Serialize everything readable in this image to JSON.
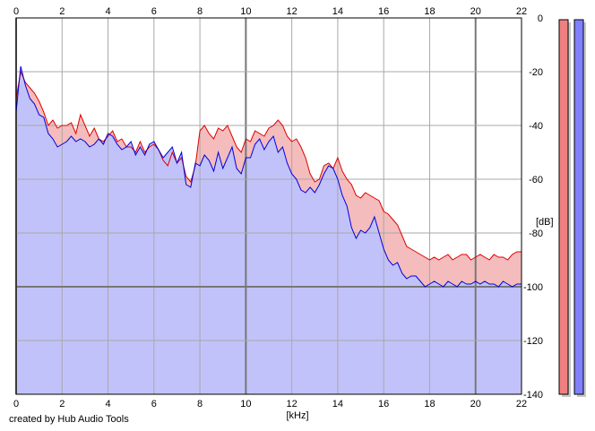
{
  "chart_data": {
    "type": "area",
    "xlabel": "[kHz]",
    "ylabel": "[dB]",
    "xlim": [
      0,
      22
    ],
    "ylim": [
      -140,
      0
    ],
    "x_ticks": [
      0,
      2,
      4,
      6,
      8,
      10,
      12,
      14,
      16,
      18,
      20,
      22
    ],
    "y_ticks": [
      0,
      -20,
      -40,
      -60,
      -80,
      -100,
      -120,
      -140
    ],
    "grid": true,
    "series": [
      {
        "color": "#e00000",
        "fill": "#f4bcbc",
        "x": [
          0,
          0.2,
          0.4,
          0.6,
          0.8,
          1,
          1.2,
          1.4,
          1.6,
          1.8,
          2,
          2.2,
          2.4,
          2.6,
          2.8,
          3,
          3.2,
          3.4,
          3.6,
          3.8,
          4,
          4.2,
          4.4,
          4.6,
          4.8,
          5,
          5.2,
          5.4,
          5.6,
          5.8,
          6,
          6.2,
          6.4,
          6.6,
          6.8,
          7,
          7.2,
          7.4,
          7.6,
          7.8,
          8,
          8.2,
          8.4,
          8.6,
          8.8,
          9,
          9.2,
          9.4,
          9.6,
          9.8,
          10,
          10.2,
          10.4,
          10.6,
          10.8,
          11,
          11.2,
          11.4,
          11.6,
          11.8,
          12,
          12.2,
          12.4,
          12.6,
          12.8,
          13,
          13.2,
          13.4,
          13.6,
          13.8,
          14,
          14.2,
          14.4,
          14.6,
          14.8,
          15,
          15.2,
          15.4,
          15.6,
          15.8,
          16,
          16.2,
          16.4,
          16.6,
          16.8,
          17,
          17.2,
          17.4,
          17.6,
          17.8,
          18,
          18.2,
          18.4,
          18.6,
          18.8,
          19,
          19.2,
          19.4,
          19.6,
          19.8,
          20,
          20.2,
          20.4,
          20.6,
          20.8,
          21,
          21.2,
          21.4,
          21.6,
          21.8,
          22
        ],
        "values": [
          -30,
          -20,
          -24,
          -26,
          -28,
          -31,
          -35,
          -40,
          -38,
          -41,
          -40,
          -40,
          -39,
          -43,
          -36,
          -40,
          -44,
          -41,
          -45,
          -46,
          -44,
          -42,
          -46,
          -45,
          -48,
          -48,
          -50,
          -46,
          -50,
          -48,
          -47,
          -49,
          -53,
          -55,
          -50,
          -54,
          -52,
          -59,
          -61,
          -55,
          -42,
          -40,
          -43,
          -45,
          -41,
          -42,
          -40,
          -44,
          -48,
          -50,
          -45,
          -46,
          -42,
          -43,
          -44,
          -41,
          -40,
          -38,
          -40,
          -44,
          -46,
          -45,
          -48,
          -52,
          -58,
          -61,
          -60,
          -55,
          -54,
          -56,
          -52,
          -57,
          -60,
          -62,
          -66,
          -67,
          -65,
          -66,
          -67,
          -68,
          -72,
          -73,
          -75,
          -77,
          -81,
          -85,
          -86,
          -87,
          -88,
          -89,
          -90,
          -89,
          -90,
          -89,
          -88,
          -90,
          -89,
          -88,
          -88,
          -90,
          -89,
          -88,
          -89,
          -90,
          -88,
          -89,
          -89,
          -90,
          -88,
          -87,
          -87
        ]
      },
      {
        "color": "#0000e0",
        "fill": "#c2c2fa",
        "x": [
          0,
          0.2,
          0.4,
          0.6,
          0.8,
          1,
          1.2,
          1.4,
          1.6,
          1.8,
          2,
          2.2,
          2.4,
          2.6,
          2.8,
          3,
          3.2,
          3.4,
          3.6,
          3.8,
          4,
          4.2,
          4.4,
          4.6,
          4.8,
          5,
          5.2,
          5.4,
          5.6,
          5.8,
          6,
          6.2,
          6.4,
          6.6,
          6.8,
          7,
          7.2,
          7.4,
          7.6,
          7.8,
          8,
          8.2,
          8.4,
          8.6,
          8.8,
          9,
          9.2,
          9.4,
          9.6,
          9.8,
          10,
          10.2,
          10.4,
          10.6,
          10.8,
          11,
          11.2,
          11.4,
          11.6,
          11.8,
          12,
          12.2,
          12.4,
          12.6,
          12.8,
          13,
          13.2,
          13.4,
          13.6,
          13.8,
          14,
          14.2,
          14.4,
          14.6,
          14.8,
          15,
          15.2,
          15.4,
          15.6,
          15.8,
          16,
          16.2,
          16.4,
          16.6,
          16.8,
          17,
          17.2,
          17.4,
          17.6,
          17.8,
          18,
          18.2,
          18.4,
          18.6,
          18.8,
          19,
          19.2,
          19.4,
          19.6,
          19.8,
          20,
          20.2,
          20.4,
          20.6,
          20.8,
          21,
          21.2,
          21.4,
          21.6,
          21.8,
          22
        ],
        "values": [
          -35,
          -18,
          -25,
          -30,
          -32,
          -36,
          -37,
          -43,
          -45,
          -48,
          -47,
          -46,
          -44,
          -46,
          -45,
          -46,
          -48,
          -47,
          -45,
          -47,
          -43,
          -44,
          -47,
          -49,
          -48,
          -46,
          -51,
          -48,
          -51,
          -47,
          -46,
          -49,
          -52,
          -50,
          -48,
          -54,
          -50,
          -62,
          -63,
          -54,
          -55,
          -51,
          -53,
          -57,
          -50,
          -56,
          -52,
          -48,
          -56,
          -58,
          -52,
          -52,
          -47,
          -45,
          -49,
          -46,
          -44,
          -50,
          -48,
          -54,
          -58,
          -60,
          -64,
          -65,
          -63,
          -65,
          -62,
          -58,
          -55,
          -56,
          -60,
          -66,
          -70,
          -78,
          -82,
          -79,
          -80,
          -78,
          -74,
          -80,
          -86,
          -90,
          -92,
          -91,
          -95,
          -97,
          -96,
          -96,
          -98,
          -100,
          -99,
          -98,
          -99,
          -100,
          -98,
          -99,
          -100,
          -98,
          -99,
          -99,
          -98,
          -99,
          -98,
          -99,
          -99,
          -100,
          -98,
          -99,
          -100,
          -99,
          -99
        ]
      }
    ],
    "meters": [
      {
        "color": "#f08080",
        "level": 1.0
      },
      {
        "color": "#8080ff",
        "level": 1.0
      }
    ]
  },
  "footer": {
    "credit": "created by Hub Audio Tools"
  }
}
